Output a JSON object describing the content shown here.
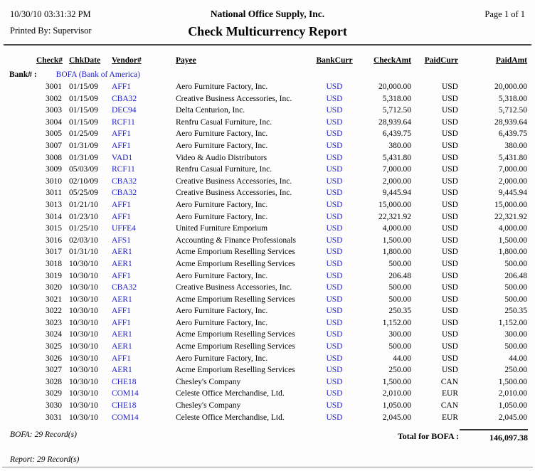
{
  "colors": {
    "link_blue": "#2222CC",
    "text": "#000000",
    "rule_gray": "#4d4d4d"
  },
  "header": {
    "date": "10/30/10",
    "time": "03:31:32 PM",
    "printed_by": "Printed By: Supervisor",
    "company": "National Office Supply, Inc.",
    "title": "Check Multicurrency Report",
    "page": "Page 1 of 1"
  },
  "table": {
    "columns": [
      {
        "key": "check_no",
        "label": "Check#"
      },
      {
        "key": "chk_date",
        "label": "ChkDate"
      },
      {
        "key": "vendor",
        "label": "Vendor#"
      },
      {
        "key": "payee",
        "label": "Payee"
      },
      {
        "key": "bank_curr",
        "label": "BankCurr"
      },
      {
        "key": "check_amt",
        "label": "CheckAmt"
      },
      {
        "key": "paid_curr",
        "label": "PaidCurr"
      },
      {
        "key": "paid_amt",
        "label": "PaidAmt"
      }
    ],
    "bank_group": {
      "label": "Bank# :",
      "value": "BOFA (Bank of America)"
    },
    "rows": [
      {
        "check_no": "3001",
        "chk_date": "01/15/09",
        "vendor": "AFF1",
        "payee": "Aero Furniture Factory, Inc.",
        "bank_curr": "USD",
        "check_amt": "20,000.00",
        "paid_curr": "USD",
        "paid_amt": "20,000.00"
      },
      {
        "check_no": "3002",
        "chk_date": "01/15/09",
        "vendor": "CBA32",
        "payee": "Creative Business Accessories, Inc.",
        "bank_curr": "USD",
        "check_amt": "5,318.00",
        "paid_curr": "USD",
        "paid_amt": "5,318.00"
      },
      {
        "check_no": "3003",
        "chk_date": "01/15/09",
        "vendor": "DEC94",
        "payee": "Delta Centurion, Inc.",
        "bank_curr": "USD",
        "check_amt": "5,712.50",
        "paid_curr": "USD",
        "paid_amt": "5,712.50"
      },
      {
        "check_no": "3004",
        "chk_date": "01/15/09",
        "vendor": "RCF11",
        "payee": "Renfru Casual Furniture, Inc.",
        "bank_curr": "USD",
        "check_amt": "28,939.64",
        "paid_curr": "USD",
        "paid_amt": "28,939.64"
      },
      {
        "check_no": "3005",
        "chk_date": "01/25/09",
        "vendor": "AFF1",
        "payee": "Aero Furniture Factory, Inc.",
        "bank_curr": "USD",
        "check_amt": "6,439.75",
        "paid_curr": "USD",
        "paid_amt": "6,439.75"
      },
      {
        "check_no": "3007",
        "chk_date": "01/31/09",
        "vendor": "AFF1",
        "payee": "Aero Furniture Factory, Inc.",
        "bank_curr": "USD",
        "check_amt": "380.00",
        "paid_curr": "USD",
        "paid_amt": "380.00"
      },
      {
        "check_no": "3008",
        "chk_date": "01/31/09",
        "vendor": "VAD1",
        "payee": "Video & Audio Distributors",
        "bank_curr": "USD",
        "check_amt": "5,431.80",
        "paid_curr": "USD",
        "paid_amt": "5,431.80"
      },
      {
        "check_no": "3009",
        "chk_date": "05/03/09",
        "vendor": "RCF11",
        "payee": "Renfru Casual Furniture, Inc.",
        "bank_curr": "USD",
        "check_amt": "7,000.00",
        "paid_curr": "USD",
        "paid_amt": "7,000.00"
      },
      {
        "check_no": "3010",
        "chk_date": "02/10/09",
        "vendor": "CBA32",
        "payee": "Creative Business Accessories, Inc.",
        "bank_curr": "USD",
        "check_amt": "2,000.00",
        "paid_curr": "USD",
        "paid_amt": "2,000.00"
      },
      {
        "check_no": "3011",
        "chk_date": "05/25/09",
        "vendor": "CBA32",
        "payee": "Creative Business Accessories, Inc.",
        "bank_curr": "USD",
        "check_amt": "9,445.94",
        "paid_curr": "USD",
        "paid_amt": "9,445.94"
      },
      {
        "check_no": "3013",
        "chk_date": "01/21/10",
        "vendor": "AFF1",
        "payee": "Aero Furniture Factory, Inc.",
        "bank_curr": "USD",
        "check_amt": "15,000.00",
        "paid_curr": "USD",
        "paid_amt": "15,000.00"
      },
      {
        "check_no": "3014",
        "chk_date": "01/23/10",
        "vendor": "AFF1",
        "payee": "Aero Furniture Factory, Inc.",
        "bank_curr": "USD",
        "check_amt": "22,321.92",
        "paid_curr": "USD",
        "paid_amt": "22,321.92"
      },
      {
        "check_no": "3015",
        "chk_date": "01/25/10",
        "vendor": "UFFE4",
        "payee": "United Furniture Emporium",
        "bank_curr": "USD",
        "check_amt": "4,000.00",
        "paid_curr": "USD",
        "paid_amt": "4,000.00"
      },
      {
        "check_no": "3016",
        "chk_date": "02/03/10",
        "vendor": "AFS1",
        "payee": "Accounting & Finance Professionals",
        "bank_curr": "USD",
        "check_amt": "1,500.00",
        "paid_curr": "USD",
        "paid_amt": "1,500.00"
      },
      {
        "check_no": "3017",
        "chk_date": "01/31/10",
        "vendor": "AER1",
        "payee": "Acme Emporium Reselling Services",
        "bank_curr": "USD",
        "check_amt": "1,800.00",
        "paid_curr": "USD",
        "paid_amt": "1,800.00"
      },
      {
        "check_no": "3018",
        "chk_date": "10/30/10",
        "vendor": "AER1",
        "payee": "Acme Emporium Reselling Services",
        "bank_curr": "USD",
        "check_amt": "500.00",
        "paid_curr": "USD",
        "paid_amt": "500.00"
      },
      {
        "check_no": "3019",
        "chk_date": "10/30/10",
        "vendor": "AFF1",
        "payee": "Aero Furniture Factory, Inc.",
        "bank_curr": "USD",
        "check_amt": "206.48",
        "paid_curr": "USD",
        "paid_amt": "206.48"
      },
      {
        "check_no": "3020",
        "chk_date": "10/30/10",
        "vendor": "CBA32",
        "payee": "Creative Business Accessories, Inc.",
        "bank_curr": "USD",
        "check_amt": "500.00",
        "paid_curr": "USD",
        "paid_amt": "500.00"
      },
      {
        "check_no": "3021",
        "chk_date": "10/30/10",
        "vendor": "AER1",
        "payee": "Acme Emporium Reselling Services",
        "bank_curr": "USD",
        "check_amt": "500.00",
        "paid_curr": "USD",
        "paid_amt": "500.00"
      },
      {
        "check_no": "3022",
        "chk_date": "10/30/10",
        "vendor": "AFF1",
        "payee": "Aero Furniture Factory, Inc.",
        "bank_curr": "USD",
        "check_amt": "250.35",
        "paid_curr": "USD",
        "paid_amt": "250.35"
      },
      {
        "check_no": "3023",
        "chk_date": "10/30/10",
        "vendor": "AFF1",
        "payee": "Aero Furniture Factory, Inc.",
        "bank_curr": "USD",
        "check_amt": "1,152.00",
        "paid_curr": "USD",
        "paid_amt": "1,152.00"
      },
      {
        "check_no": "3024",
        "chk_date": "10/30/10",
        "vendor": "AER1",
        "payee": "Acme Emporium Reselling Services",
        "bank_curr": "USD",
        "check_amt": "300.00",
        "paid_curr": "USD",
        "paid_amt": "300.00"
      },
      {
        "check_no": "3025",
        "chk_date": "10/30/10",
        "vendor": "AER1",
        "payee": "Acme Emporium Reselling Services",
        "bank_curr": "USD",
        "check_amt": "500.00",
        "paid_curr": "USD",
        "paid_amt": "500.00"
      },
      {
        "check_no": "3026",
        "chk_date": "10/30/10",
        "vendor": "AFF1",
        "payee": "Aero Furniture Factory, Inc.",
        "bank_curr": "USD",
        "check_amt": "44.00",
        "paid_curr": "USD",
        "paid_amt": "44.00"
      },
      {
        "check_no": "3027",
        "chk_date": "10/30/10",
        "vendor": "AER1",
        "payee": "Acme Emporium Reselling Services",
        "bank_curr": "USD",
        "check_amt": "250.00",
        "paid_curr": "USD",
        "paid_amt": "250.00"
      },
      {
        "check_no": "3028",
        "chk_date": "10/30/10",
        "vendor": "CHE18",
        "payee": "Chesley's Company",
        "bank_curr": "USD",
        "check_amt": "1,500.00",
        "paid_curr": "CAN",
        "paid_amt": "1,500.00"
      },
      {
        "check_no": "3029",
        "chk_date": "10/30/10",
        "vendor": "COM14",
        "payee": "Celeste Office Merchandise, Ltd.",
        "bank_curr": "USD",
        "check_amt": "2,010.00",
        "paid_curr": "EUR",
        "paid_amt": "2,010.00"
      },
      {
        "check_no": "3030",
        "chk_date": "10/30/10",
        "vendor": "CHE18",
        "payee": "Chesley's Company",
        "bank_curr": "USD",
        "check_amt": "1,050.00",
        "paid_curr": "CAN",
        "paid_amt": "1,050.00"
      },
      {
        "check_no": "3031",
        "chk_date": "10/30/10",
        "vendor": "COM14",
        "payee": "Celeste Office Merchandise, Ltd.",
        "bank_curr": "USD",
        "check_amt": "2,045.00",
        "paid_curr": "EUR",
        "paid_amt": "2,045.00"
      }
    ]
  },
  "totals": {
    "label": "Total for BOFA :",
    "amount": "146,097.38"
  },
  "footer": {
    "bank_count": "BOFA: 29 Record(s)",
    "report_count": "Report: 29 Record(s)"
  }
}
